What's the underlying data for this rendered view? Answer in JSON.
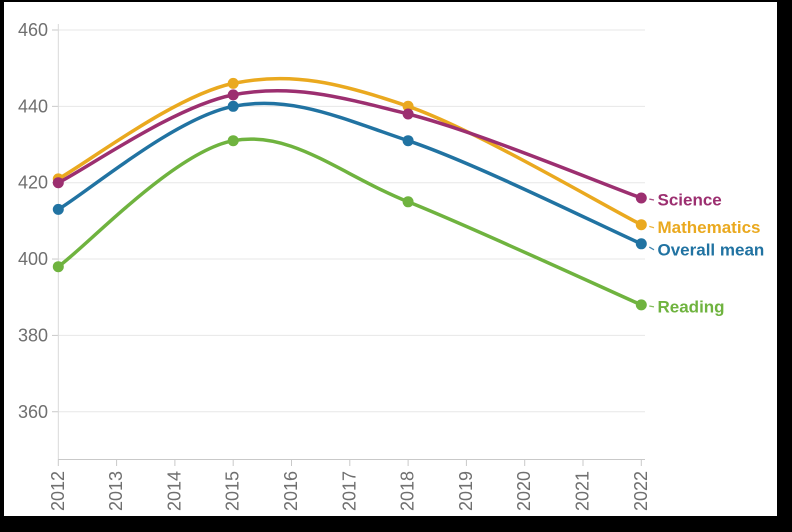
{
  "chart_data": {
    "type": "line",
    "title": "",
    "smooth": true,
    "grid": "horizontal",
    "legend_position": "end-of-line-labels",
    "x": [
      2012,
      2015,
      2018,
      2022
    ],
    "x_range": [
      2012,
      2022
    ],
    "x_tick_labels": [
      "2012",
      "2013",
      "2014",
      "2015",
      "2016",
      "2017",
      "2018",
      "2019",
      "2020",
      "2021",
      "2022"
    ],
    "y_ticks": [
      360,
      380,
      400,
      420,
      440,
      460
    ],
    "y_axis_top": 460,
    "ylim": [
      348,
      462
    ],
    "series": [
      {
        "name": "Mathematics",
        "color": "#eaa91f",
        "values": [
          421,
          446,
          440,
          409
        ],
        "label_dy": 3
      },
      {
        "name": "Science",
        "color": "#9c2f70",
        "values": [
          420,
          443,
          438,
          416
        ],
        "label_dy": 2
      },
      {
        "name": "Overall mean",
        "color": "#2173a2",
        "values": [
          413,
          440,
          431,
          404
        ],
        "label_dy": 6
      },
      {
        "name": "Reading",
        "color": "#6fb33f",
        "values": [
          398,
          431,
          415,
          388
        ],
        "label_dy": 2
      }
    ]
  },
  "style": {
    "axis_text_color": "#6f6f6f",
    "gridline_color": "#e7e7e7",
    "axis_line_color": "#c9c9c9",
    "card_background": "#ffffff",
    "frame_background": "#000000"
  }
}
